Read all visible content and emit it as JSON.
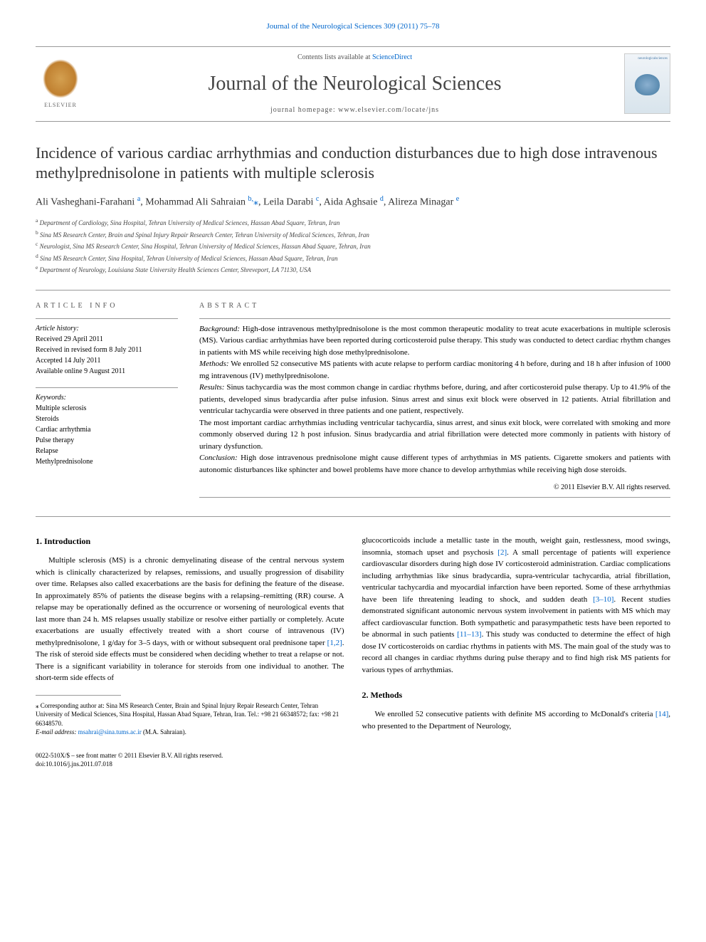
{
  "header": {
    "journal_ref": "Journal of the Neurological Sciences 309 (2011) 75–78",
    "contents_line_prefix": "Contents lists available at ",
    "contents_line_link": "ScienceDirect",
    "journal_name": "Journal of the Neurological Sciences",
    "homepage_prefix": "journal homepage: ",
    "homepage_url": "www.elsevier.com/locate/jns",
    "publisher_name": "ELSEVIER",
    "cover_text": "neurologicalsciences"
  },
  "article": {
    "title": "Incidence of various cardiac arrhythmias and conduction disturbances due to high dose intravenous methylprednisolone in patients with multiple sclerosis",
    "authors_html": "Ali Vasheghani-Farahani <sup>a</sup>, Mohammad Ali Sahraian <sup>b,</sup><span class='star'>⁎</span>, Leila Darabi <sup>c</sup>, Aida Aghsaie <sup>d</sup>, Alireza Minagar <sup>e</sup>",
    "affiliations": {
      "a": "Department of Cardiology, Sina Hospital, Tehran University of Medical Sciences, Hassan Abad Square, Tehran, Iran",
      "b": "Sina MS Research Center, Brain and Spinal Injury Repair Research Center, Tehran University of Medical Sciences, Tehran, Iran",
      "c": "Neurologist, Sina MS Research Center, Sina Hospital, Tehran University of Medical Sciences, Hassan Abad Square, Tehran, Iran",
      "d": "Sina MS Research Center, Sina Hospital, Tehran University of Medical Sciences, Hassan Abad Square, Tehran, Iran",
      "e": "Department of Neurology, Louisiana State University Health Sciences Center, Shreveport, LA 71130, USA"
    }
  },
  "info": {
    "heading": "ARTICLE INFO",
    "history_label": "Article history:",
    "received": "Received 29 April 2011",
    "revised": "Received in revised form 8 July 2011",
    "accepted": "Accepted 14 July 2011",
    "online": "Available online 9 August 2011",
    "keywords_label": "Keywords:",
    "keywords": [
      "Multiple sclerosis",
      "Steroids",
      "Cardiac arrhythmia",
      "Pulse therapy",
      "Relapse",
      "Methylprednisolone"
    ]
  },
  "abstract": {
    "heading": "ABSTRACT",
    "background_label": "Background:",
    "background": "High-dose intravenous methylprednisolone is the most common therapeutic modality to treat acute exacerbations in multiple sclerosis (MS). Various cardiac arrhythmias have been reported during corticosteroid pulse therapy. This study was conducted to detect cardiac rhythm changes in patients with MS while receiving high dose methylprednisolone.",
    "methods_label": "Methods:",
    "methods": "We enrolled 52 consecutive MS patients with acute relapse to perform cardiac monitoring 4 h before, during and 18 h after infusion of 1000 mg intravenous (IV) methylprednisolone.",
    "results_label": "Results:",
    "results": "Sinus tachycardia was the most common change in cardiac rhythms before, during, and after corticosteroid pulse therapy. Up to 41.9% of the patients, developed sinus bradycardia after pulse infusion. Sinus arrest and sinus exit block were observed in 12 patients. Atrial fibrillation and ventricular tachycardia were observed in three patients and one patient, respectively.",
    "results2": "The most important cardiac arrhythmias including ventricular tachycardia, sinus arrest, and sinus exit block, were correlated with smoking and more commonly observed during 12 h post infusion. Sinus bradycardia and atrial fibrillation were detected more commonly in patients with history of urinary dysfunction.",
    "conclusion_label": "Conclusion:",
    "conclusion": "High dose intravenous prednisolone might cause different types of arrhythmias in MS patients. Cigarette smokers and patients with autonomic disturbances like sphincter and bowel problems have more chance to develop arrhythmias while receiving high dose steroids.",
    "copyright": "© 2011 Elsevier B.V. All rights reserved."
  },
  "body": {
    "intro_heading": "1. Introduction",
    "intro_p1": "Multiple sclerosis (MS) is a chronic demyelinating disease of the central nervous system which is clinically characterized by relapses, remissions, and usually progression of disability over time. Relapses also called exacerbations are the basis for defining the feature of the disease. In approximately 85% of patients the disease begins with a relapsing–remitting (RR) course. A relapse may be operationally defined as the occurrence or worsening of neurological events that last more than 24 h. MS relapses usually stabilize or resolve either partially or completely. Acute exacerbations are usually effectively treated with a short course of intravenous (IV) methylprednisolone, 1 g/day for 3–5 days, with or without subsequent oral prednisone taper ",
    "intro_ref1": "[1,2]",
    "intro_p1b": ". The risk of steroid side effects must be considered when deciding whether to treat a relapse or not. There is a significant variability in tolerance for steroids from one individual to another. The short-term side effects of",
    "intro_p2a": "glucocorticoids include a metallic taste in the mouth, weight gain, restlessness, mood swings, insomnia, stomach upset and psychosis ",
    "intro_ref2": "[2]",
    "intro_p2b": ". A small percentage of patients will experience cardiovascular disorders during high dose IV corticosteroid administration. Cardiac complications including arrhythmias like sinus bradycardia, supra-ventricular tachycardia, atrial fibrillation, ventricular tachycardia and myocardial infarction have been reported. Some of these arrhythmias have been life threatening leading to shock, and sudden death ",
    "intro_ref3": "[3–10]",
    "intro_p2c": ". Recent studies demonstrated significant autonomic nervous system involvement in patients with MS which may affect cardiovascular function. Both sympathetic and parasympathetic tests have been reported to be abnormal in such patients ",
    "intro_ref4": "[11–13]",
    "intro_p2d": ". This study was conducted to determine the effect of high dose IV corticosteroids on cardiac rhythms in patients with MS. The main goal of the study was to record all changes in cardiac rhythms during pulse therapy and to find high risk MS patients for various types of arrhythmias.",
    "methods_heading": "2. Methods",
    "methods_p1a": "We enrolled 52 consecutive patients with definite MS according to McDonald's criteria ",
    "methods_ref1": "[14]",
    "methods_p1b": ", who presented to the Department of Neurology,"
  },
  "footnote": {
    "corresponding": "⁎ Corresponding author at: Sina MS Research Center, Brain and Spinal Injury Repair Research Center, Tehran University of Medical Sciences, Sina Hospital, Hassan Abad Square, Tehran, Iran. Tel.: +98 21 66348572; fax: +98 21 66348570.",
    "email_label": "E-mail address: ",
    "email": "msahrai@sina.tums.ac.ir",
    "email_suffix": " (M.A. Sahraian)."
  },
  "footer": {
    "issn_line": "0022-510X/$ – see front matter © 2011 Elsevier B.V. All rights reserved.",
    "doi": "doi:10.1016/j.jns.2011.07.018"
  },
  "colors": {
    "link": "#0066cc",
    "text": "#000000",
    "heading_gray": "#555555",
    "border": "#999999"
  }
}
